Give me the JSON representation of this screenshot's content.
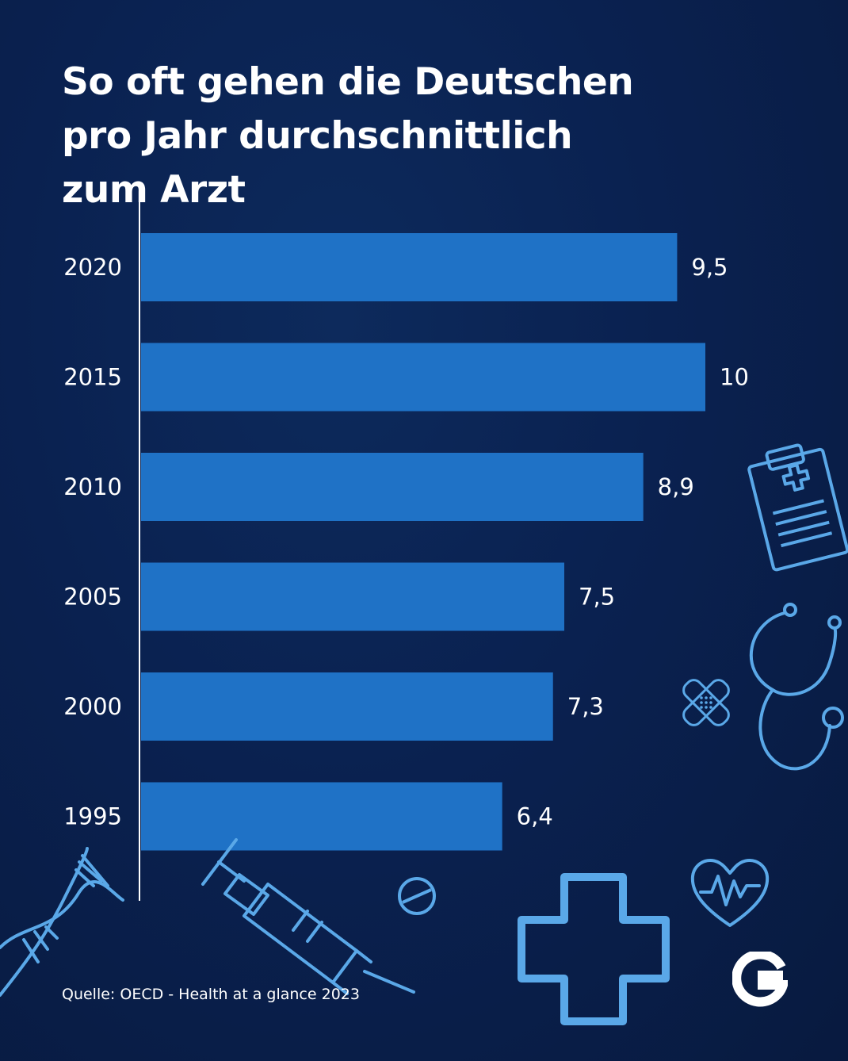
{
  "title": {
    "line1": "So oft gehen die Deutschen",
    "line2": "pro Jahr durchschnittlich",
    "line3": "zum Arzt"
  },
  "source": "Quelle: OECD - Health at a glance 2023",
  "colors": {
    "background": "#0a2150",
    "bar": "#1f72c6",
    "icon_outline": "#5aa8e8",
    "text": "#ffffff"
  },
  "icons": [
    "clipboard-icon",
    "stethoscope-icon",
    "bandage-icon",
    "dna-icon",
    "syringe-icon",
    "pill-icon",
    "medical-cross-icon",
    "heart-pulse-icon",
    "logo-g-icon"
  ],
  "chart_data": {
    "type": "bar",
    "orientation": "horizontal",
    "title": "So oft gehen die Deutschen pro Jahr durchschnittlich zum Arzt",
    "categories": [
      "2020",
      "2015",
      "2010",
      "2005",
      "2000",
      "1995"
    ],
    "values": [
      9.5,
      10,
      8.9,
      7.5,
      7.3,
      6.4
    ],
    "value_labels": [
      "9,5",
      "10",
      "8,9",
      "7,5",
      "7,3",
      "6,4"
    ],
    "xlim": [
      0,
      10
    ],
    "grid": false,
    "legend": "none"
  }
}
